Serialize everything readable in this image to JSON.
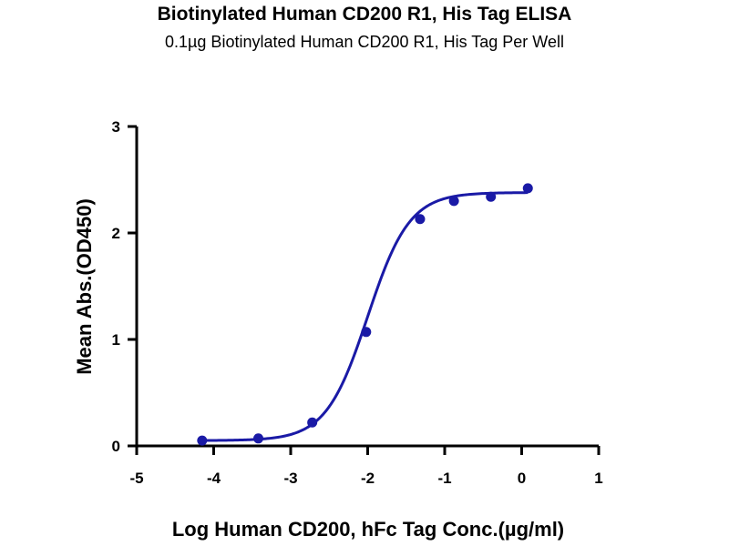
{
  "chart_data": {
    "type": "scatter",
    "title": "Biotinylated Human CD200 R1, His Tag ELISA",
    "subtitle": "0.1µg Biotinylated Human CD200 R1, His Tag Per Well",
    "xlabel": "Log Human CD200, hFc Tag Conc.(µg/ml)",
    "ylabel": "Mean Abs.(OD450)",
    "xlim": [
      -5,
      1
    ],
    "ylim": [
      0,
      3
    ],
    "x_ticks": [
      -5,
      -4,
      -3,
      -2,
      -1,
      0,
      1
    ],
    "y_ticks": [
      0,
      1,
      2,
      3
    ],
    "grid": false,
    "color": "#1a1aa6",
    "series": [
      {
        "x": [
          -4.15,
          -3.42,
          -2.72,
          -2.02,
          -1.32,
          -0.88,
          -0.4,
          0.08
        ],
        "y": [
          0.05,
          0.07,
          0.22,
          1.07,
          2.13,
          2.3,
          2.34,
          2.42
        ]
      }
    ],
    "fit": {
      "model": "4PL",
      "bottom": 0.05,
      "top": 2.38,
      "log_ec50": -2.0,
      "hill": 1.6,
      "x_range": [
        -4.15,
        0.08
      ]
    }
  }
}
